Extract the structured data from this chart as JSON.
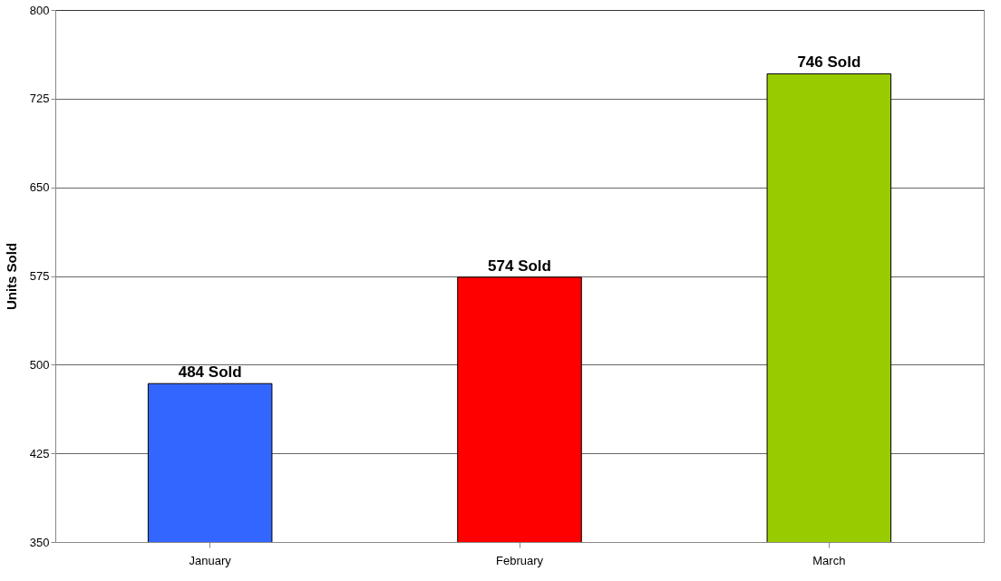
{
  "chart_data": {
    "type": "bar",
    "ylabel": "Units Sold",
    "categories": [
      "January",
      "February",
      "March"
    ],
    "values": [
      484,
      574,
      746
    ],
    "colors": [
      "#3366ff",
      "#ff0000",
      "#99cc00"
    ],
    "value_labels": [
      "484 Sold",
      "574 Sold",
      "746 Sold"
    ],
    "ylim": [
      350,
      800
    ],
    "yticks": [
      350,
      425,
      500,
      575,
      650,
      725,
      800
    ],
    "grid": "y"
  }
}
